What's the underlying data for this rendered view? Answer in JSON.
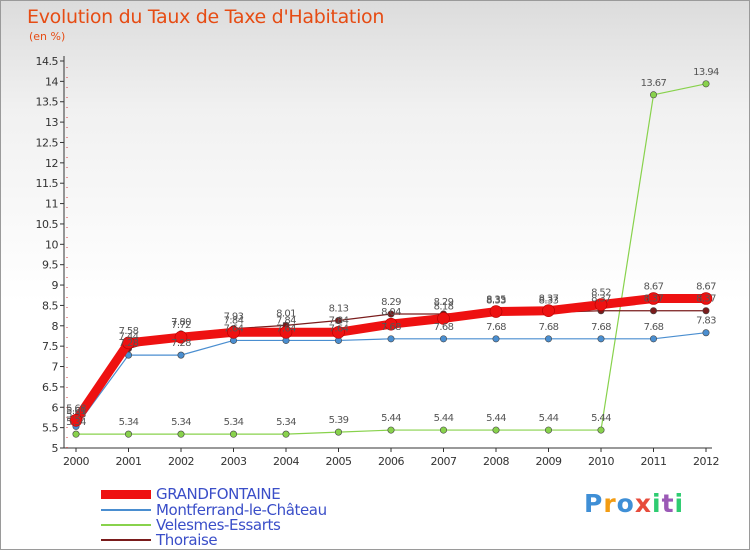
{
  "title": "Evolution du Taux de Taxe d'Habitation",
  "unit": "(en %)",
  "logo": {
    "letters": [
      "P",
      "r",
      "o",
      "x",
      "i",
      "t",
      "i"
    ],
    "colors": [
      "#3f8fd6",
      "#f39c12",
      "#3f8fd6",
      "#e74c3c",
      "#2ecc71",
      "#9b59b6",
      "#2ecc71"
    ]
  },
  "chart_data": {
    "type": "line",
    "x": [
      "2000",
      "2001",
      "2002",
      "2003",
      "2004",
      "2005",
      "2006",
      "2007",
      "2008",
      "2009",
      "2010",
      "2011",
      "2012"
    ],
    "ylim": [
      5,
      14.5
    ],
    "yticks": [
      "5",
      "5.5",
      "6",
      "6.5",
      "7",
      "7.5",
      "8",
      "8.5",
      "9",
      "9.5",
      "10",
      "10.5",
      "11",
      "11.5",
      "12",
      "12.5",
      "13",
      "13.5",
      "14",
      "14.5"
    ],
    "grid": false,
    "legend": "bottom-left",
    "series": [
      {
        "name": "GRANDFONTAINE",
        "color": "#ee1111",
        "width": 9,
        "values": [
          5.68,
          7.58,
          7.72,
          7.84,
          7.84,
          7.84,
          8.04,
          8.18,
          8.35,
          8.37,
          8.52,
          8.67,
          8.67
        ],
        "labels": [
          "5.68",
          "7.58",
          "7.72",
          "7.84",
          "7.84",
          "7.84",
          "8.04",
          "8.18",
          "8.35",
          "8.37",
          "8.52",
          "8.67",
          "8.67"
        ]
      },
      {
        "name": "Montferrand-le-Château",
        "color": "#4a8ed0",
        "width": 1.2,
        "values": [
          5.53,
          7.28,
          7.28,
          7.64,
          7.64,
          7.64,
          7.68,
          7.68,
          7.68,
          7.68,
          7.68,
          7.68,
          7.83
        ],
        "labels": [
          "5.53",
          "7.28",
          "7.28",
          "7.64",
          "7.64",
          "7.64",
          "7.68",
          "7.68",
          "7.68",
          "7.68",
          "7.68",
          "7.68",
          "7.83"
        ]
      },
      {
        "name": "Velesmes-Essarts",
        "color": "#88d24c",
        "width": 1.2,
        "values": [
          5.34,
          5.34,
          5.34,
          5.34,
          5.34,
          5.39,
          5.44,
          5.44,
          5.44,
          5.44,
          5.44,
          13.67,
          13.94
        ],
        "labels": [
          "5.34",
          "5.34",
          "5.34",
          "5.34",
          "5.34",
          "5.39",
          "5.44",
          "5.44",
          "5.44",
          "5.44",
          "5.44",
          "13.67",
          "13.94"
        ]
      },
      {
        "name": "Thoraise",
        "color": "#7a1c1c",
        "width": 1.2,
        "values": [
          5.61,
          7.44,
          7.8,
          7.93,
          8.01,
          8.13,
          8.29,
          8.29,
          8.33,
          8.33,
          8.37,
          8.37,
          8.37
        ],
        "labels": [
          "5.61",
          "7.44",
          "7.80",
          "7.93",
          "8.01",
          "8.13",
          "8.29",
          "8.29",
          "8.33",
          "8.33",
          "8.37",
          "8.37",
          "8.37"
        ]
      }
    ]
  }
}
